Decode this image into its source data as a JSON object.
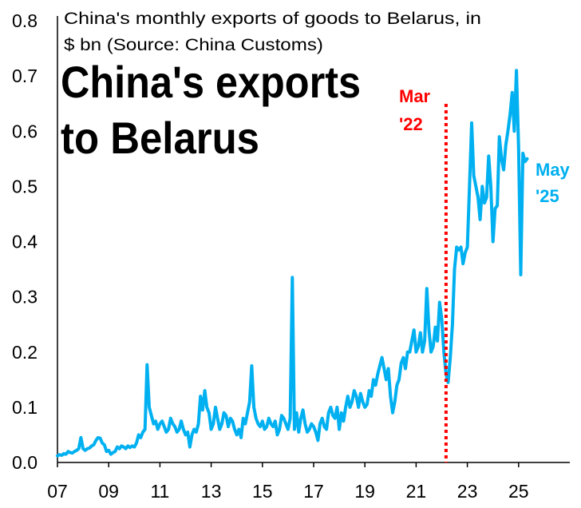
{
  "chart_data": {
    "type": "line",
    "title_lines": [
      "China's monthly exports of goods to Belarus, in",
      "$ bn (Source: China Customs)"
    ],
    "headline_lines": [
      "China's exports",
      "to Belarus"
    ],
    "xlim": [
      "2007-01",
      "2027-01"
    ],
    "ylim": [
      0,
      0.8
    ],
    "grid": false,
    "x_ticks": [
      {
        "value": "2007-01",
        "label": "07"
      },
      {
        "value": "2009-01",
        "label": "09"
      },
      {
        "value": "2011-01",
        "label": "11"
      },
      {
        "value": "2013-01",
        "label": "13"
      },
      {
        "value": "2015-01",
        "label": "15"
      },
      {
        "value": "2017-01",
        "label": "17"
      },
      {
        "value": "2019-01",
        "label": "19"
      },
      {
        "value": "2021-01",
        "label": "21"
      },
      {
        "value": "2023-01",
        "label": "23"
      },
      {
        "value": "2025-01",
        "label": "25"
      }
    ],
    "y_ticks": [
      {
        "value": 0.0,
        "label": "0.0"
      },
      {
        "value": 0.1,
        "label": "0.1"
      },
      {
        "value": 0.2,
        "label": "0.2"
      },
      {
        "value": 0.3,
        "label": "0.3"
      },
      {
        "value": 0.4,
        "label": "0.4"
      },
      {
        "value": 0.5,
        "label": "0.5"
      },
      {
        "value": 0.6,
        "label": "0.6"
      },
      {
        "value": 0.7,
        "label": "0.7"
      },
      {
        "value": 0.8,
        "label": "0.8"
      }
    ],
    "x": [
      "2007-01",
      "2007-02",
      "2007-03",
      "2007-04",
      "2007-05",
      "2007-06",
      "2007-07",
      "2007-08",
      "2007-09",
      "2007-10",
      "2007-11",
      "2007-12",
      "2008-01",
      "2008-02",
      "2008-03",
      "2008-04",
      "2008-05",
      "2008-06",
      "2008-07",
      "2008-08",
      "2008-09",
      "2008-10",
      "2008-11",
      "2008-12",
      "2009-01",
      "2009-02",
      "2009-03",
      "2009-04",
      "2009-05",
      "2009-06",
      "2009-07",
      "2009-08",
      "2009-09",
      "2009-10",
      "2009-11",
      "2009-12",
      "2010-01",
      "2010-02",
      "2010-03",
      "2010-04",
      "2010-05",
      "2010-06",
      "2010-07",
      "2010-08",
      "2010-09",
      "2010-10",
      "2010-11",
      "2010-12",
      "2011-01",
      "2011-02",
      "2011-03",
      "2011-04",
      "2011-05",
      "2011-06",
      "2011-07",
      "2011-08",
      "2011-09",
      "2011-10",
      "2011-11",
      "2011-12",
      "2012-01",
      "2012-02",
      "2012-03",
      "2012-04",
      "2012-05",
      "2012-06",
      "2012-07",
      "2012-08",
      "2012-09",
      "2012-10",
      "2012-11",
      "2012-12",
      "2013-01",
      "2013-02",
      "2013-03",
      "2013-04",
      "2013-05",
      "2013-06",
      "2013-07",
      "2013-08",
      "2013-09",
      "2013-10",
      "2013-11",
      "2013-12",
      "2014-01",
      "2014-02",
      "2014-03",
      "2014-04",
      "2014-05",
      "2014-06",
      "2014-07",
      "2014-08",
      "2014-09",
      "2014-10",
      "2014-11",
      "2014-12",
      "2015-01",
      "2015-02",
      "2015-03",
      "2015-04",
      "2015-05",
      "2015-06",
      "2015-07",
      "2015-08",
      "2015-09",
      "2015-10",
      "2015-11",
      "2015-12",
      "2016-01",
      "2016-02",
      "2016-03",
      "2016-04",
      "2016-05",
      "2016-06",
      "2016-07",
      "2016-08",
      "2016-09",
      "2016-10",
      "2016-11",
      "2016-12",
      "2017-01",
      "2017-02",
      "2017-03",
      "2017-04",
      "2017-05",
      "2017-06",
      "2017-07",
      "2017-08",
      "2017-09",
      "2017-10",
      "2017-11",
      "2017-12",
      "2018-01",
      "2018-02",
      "2018-03",
      "2018-04",
      "2018-05",
      "2018-06",
      "2018-07",
      "2018-08",
      "2018-09",
      "2018-10",
      "2018-11",
      "2018-12",
      "2019-01",
      "2019-02",
      "2019-03",
      "2019-04",
      "2019-05",
      "2019-06",
      "2019-07",
      "2019-08",
      "2019-09",
      "2019-10",
      "2019-11",
      "2019-12",
      "2020-01",
      "2020-02",
      "2020-03",
      "2020-04",
      "2020-05",
      "2020-06",
      "2020-07",
      "2020-08",
      "2020-09",
      "2020-10",
      "2020-11",
      "2020-12",
      "2021-01",
      "2021-02",
      "2021-03",
      "2021-04",
      "2021-05",
      "2021-06",
      "2021-07",
      "2021-08",
      "2021-09",
      "2021-10",
      "2021-11",
      "2021-12",
      "2022-01",
      "2022-02",
      "2022-03",
      "2022-04",
      "2022-05",
      "2022-06",
      "2022-07",
      "2022-08",
      "2022-09",
      "2022-10",
      "2022-11",
      "2022-12",
      "2023-01",
      "2023-02",
      "2023-03",
      "2023-04",
      "2023-05",
      "2023-06",
      "2023-07",
      "2023-08",
      "2023-09",
      "2023-10",
      "2023-11",
      "2023-12",
      "2024-01",
      "2024-02",
      "2024-03",
      "2024-04",
      "2024-05",
      "2024-06",
      "2024-07",
      "2024-08",
      "2024-09",
      "2024-10",
      "2024-11",
      "2024-12",
      "2025-01",
      "2025-02",
      "2025-03",
      "2025-04",
      "2025-05"
    ],
    "series": [
      {
        "color": "#00B0F0",
        "values": [
          0.012,
          0.014,
          0.013,
          0.016,
          0.015,
          0.02,
          0.018,
          0.017,
          0.02,
          0.022,
          0.025,
          0.045,
          0.025,
          0.022,
          0.025,
          0.026,
          0.03,
          0.032,
          0.04,
          0.045,
          0.044,
          0.035,
          0.032,
          0.02,
          0.022,
          0.015,
          0.018,
          0.02,
          0.028,
          0.025,
          0.03,
          0.028,
          0.025,
          0.03,
          0.027,
          0.03,
          0.028,
          0.035,
          0.05,
          0.045,
          0.055,
          0.06,
          0.177,
          0.1,
          0.085,
          0.07,
          0.075,
          0.06,
          0.07,
          0.075,
          0.065,
          0.055,
          0.06,
          0.08,
          0.07,
          0.065,
          0.055,
          0.06,
          0.075,
          0.06,
          0.05,
          0.055,
          0.028,
          0.05,
          0.06,
          0.055,
          0.07,
          0.12,
          0.095,
          0.13,
          0.1,
          0.09,
          0.06,
          0.07,
          0.1,
          0.08,
          0.06,
          0.07,
          0.09,
          0.085,
          0.065,
          0.08,
          0.075,
          0.06,
          0.05,
          0.06,
          0.045,
          0.08,
          0.07,
          0.09,
          0.11,
          0.175,
          0.1,
          0.08,
          0.07,
          0.065,
          0.075,
          0.06,
          0.065,
          0.08,
          0.07,
          0.065,
          0.075,
          0.05,
          0.06,
          0.085,
          0.08,
          0.07,
          0.06,
          0.08,
          0.335,
          0.06,
          0.09,
          0.055,
          0.08,
          0.095,
          0.07,
          0.055,
          0.06,
          0.07,
          0.065,
          0.055,
          0.04,
          0.07,
          0.08,
          0.065,
          0.06,
          0.09,
          0.1,
          0.085,
          0.08,
          0.1,
          0.06,
          0.09,
          0.075,
          0.1,
          0.12,
          0.1,
          0.11,
          0.13,
          0.12,
          0.1,
          0.125,
          0.11,
          0.1,
          0.105,
          0.13,
          0.12,
          0.15,
          0.14,
          0.16,
          0.175,
          0.19,
          0.17,
          0.15,
          0.17,
          0.12,
          0.09,
          0.11,
          0.14,
          0.15,
          0.18,
          0.19,
          0.17,
          0.2,
          0.2,
          0.22,
          0.24,
          0.2,
          0.21,
          0.235,
          0.2,
          0.22,
          0.315,
          0.24,
          0.2,
          0.21,
          0.245,
          0.22,
          0.29,
          0.26,
          0.2,
          0.16,
          0.145,
          0.19,
          0.25,
          0.35,
          0.39,
          0.385,
          0.39,
          0.36,
          0.38,
          0.39,
          0.5,
          0.615,
          0.52,
          0.5,
          0.48,
          0.44,
          0.5,
          0.47,
          0.48,
          0.555,
          0.5,
          0.4,
          0.46,
          0.465,
          0.59,
          0.55,
          0.53,
          0.575,
          0.6,
          0.63,
          0.67,
          0.6,
          0.71,
          0.57,
          0.34,
          0.56,
          0.545,
          0.55
        ]
      }
    ],
    "marker_line": {
      "x": "2022-03",
      "color": "#FF0000",
      "label_lines": [
        "Mar",
        "'22"
      ]
    },
    "end_label": {
      "x": "2025-05",
      "color": "#00B0F0",
      "label_lines": [
        "May",
        "'25"
      ]
    }
  }
}
